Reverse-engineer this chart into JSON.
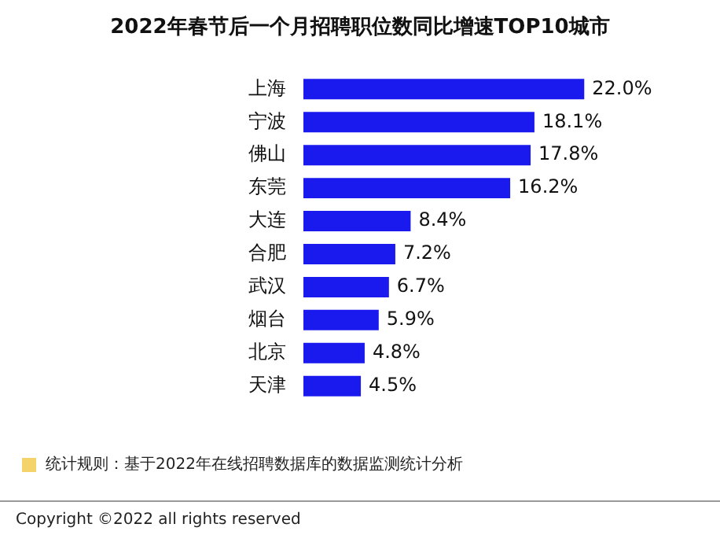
{
  "chart_data": {
    "type": "bar",
    "orientation": "horizontal",
    "title": "2022年春节后一个月招聘职位数同比增速TOP10城市",
    "categories": [
      "上海",
      "宁波",
      "佛山",
      "东莞",
      "大连",
      "合肥",
      "武汉",
      "烟台",
      "北京",
      "天津"
    ],
    "values": [
      22.0,
      18.1,
      17.8,
      16.2,
      8.4,
      7.2,
      6.7,
      5.9,
      4.8,
      4.5
    ],
    "value_labels": [
      "22.0%",
      "18.1%",
      "17.8%",
      "16.2%",
      "8.4%",
      "7.2%",
      "6.7%",
      "5.9%",
      "4.8%",
      "4.5%"
    ],
    "color": "#1a1aee",
    "grid": false,
    "legend": false,
    "annotations": [
      "统计规则：基于2022年在线招聘数据库的数据监测统计分析",
      "Copyright ©2022 all rights reserved"
    ]
  }
}
